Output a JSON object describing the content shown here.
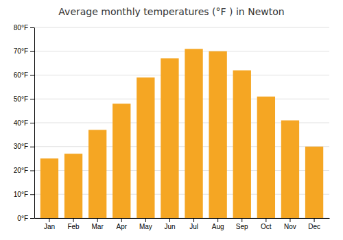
{
  "chart_data": {
    "type": "bar",
    "title": "Average monthly temperatures (°F ) in Newton",
    "categories": [
      "Jan",
      "Feb",
      "Mar",
      "Apr",
      "May",
      "Jun",
      "Jul",
      "Aug",
      "Sep",
      "Oct",
      "Nov",
      "Dec"
    ],
    "values": [
      25,
      27,
      37,
      48,
      59,
      67,
      71,
      70,
      62,
      51,
      41,
      30
    ],
    "color": "#f5a623",
    "ylim": [
      0,
      80
    ],
    "yticks": [
      {
        "value": 0,
        "label": "0°F"
      },
      {
        "value": 10,
        "label": "10°F"
      },
      {
        "value": 20,
        "label": "20°F"
      },
      {
        "value": 30,
        "label": "30°F"
      },
      {
        "value": 40,
        "label": "40°F"
      },
      {
        "value": 50,
        "label": "50°F"
      },
      {
        "value": 60,
        "label": "60°F"
      },
      {
        "value": 70,
        "label": "70°F"
      },
      {
        "value": 80,
        "label": "80°F"
      }
    ],
    "grid": true
  }
}
